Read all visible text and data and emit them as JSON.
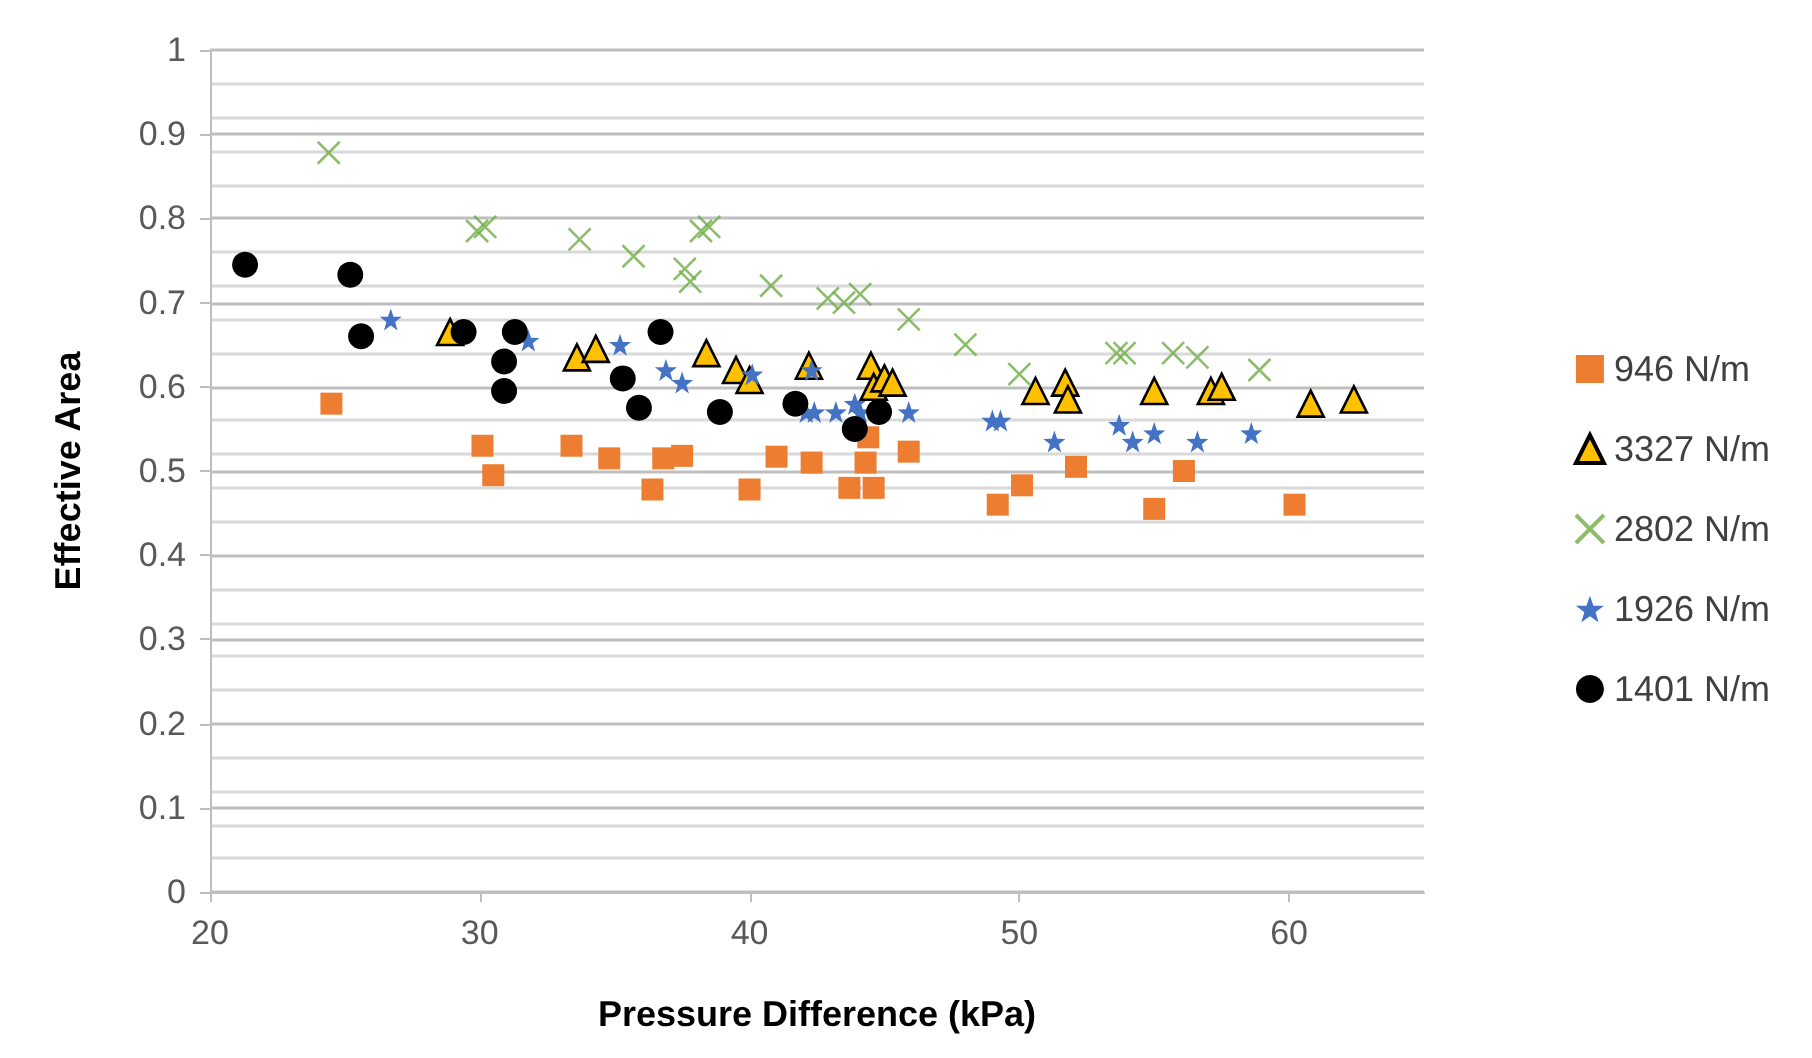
{
  "chart_data": {
    "type": "scatter",
    "xlabel": "Pressure Difference (kPa)",
    "ylabel": "Effective Area",
    "xlim": [
      20,
      65
    ],
    "xticks": [
      20,
      30,
      40,
      50,
      60
    ],
    "ylim": [
      0,
      1
    ],
    "yticks": [
      0,
      0.1,
      0.2,
      0.3,
      0.4,
      0.5,
      0.6,
      0.7,
      0.8,
      0.9,
      1
    ],
    "grid": "y",
    "legend": "right",
    "series": [
      {
        "name": "946 N/m",
        "color": "#ed7d31",
        "marker": "square",
        "x": [
          24.5,
          30.1,
          30.5,
          33.4,
          34.8,
          36.4,
          36.8,
          37.5,
          40,
          41,
          42.3,
          43.7,
          44.3,
          44.4,
          44.6,
          45.9,
          49.2,
          50.1,
          52.1,
          55,
          56.1,
          60.2
        ],
        "values": [
          0.58,
          0.53,
          0.495,
          0.53,
          0.515,
          0.478,
          0.515,
          0.518,
          0.478,
          0.517,
          0.51,
          0.48,
          0.51,
          0.54,
          0.48,
          0.523,
          0.46,
          0.483,
          0.505,
          0.455,
          0.5,
          0.46
        ]
      },
      {
        "name": "3327 N/m",
        "color": "#ffc000",
        "marker": "triangle",
        "x": [
          28.9,
          33.6,
          34.3,
          38.4,
          39.5,
          40,
          42.2,
          44.5,
          44.6,
          45,
          45.3,
          50.6,
          51.7,
          51.8,
          55,
          57.1,
          57.5,
          60.8,
          62.4
        ],
        "values": [
          0.665,
          0.635,
          0.645,
          0.64,
          0.62,
          0.608,
          0.625,
          0.625,
          0.6,
          0.61,
          0.605,
          0.595,
          0.605,
          0.585,
          0.595,
          0.595,
          0.6,
          0.58,
          0.585
        ]
      },
      {
        "name": "2802 N/m",
        "color": "#70ad47",
        "marker": "cross",
        "x": [
          24.4,
          29.9,
          30.2,
          33.7,
          35.7,
          37.6,
          37.8,
          38.2,
          38.5,
          40.8,
          42.9,
          43.5,
          44.1,
          45.9,
          48,
          50,
          53.6,
          53.9,
          55.7,
          56.6,
          58.9
        ],
        "values": [
          0.878,
          0.785,
          0.79,
          0.775,
          0.755,
          0.74,
          0.725,
          0.785,
          0.79,
          0.72,
          0.705,
          0.7,
          0.71,
          0.68,
          0.65,
          0.615,
          0.64,
          0.64,
          0.64,
          0.635,
          0.62
        ]
      },
      {
        "name": "1926 N/m",
        "color": "#4472c4",
        "marker": "star",
        "x": [
          26.7,
          31.8,
          35.2,
          36.9,
          37.5,
          40.1,
          42.1,
          42.3,
          42.4,
          43.2,
          43.9,
          44.1,
          45.9,
          49,
          49.3,
          51.3,
          53.7,
          54.2,
          55,
          56.6,
          58.6
        ],
        "values": [
          0.68,
          0.655,
          0.65,
          0.62,
          0.605,
          0.615,
          0.57,
          0.62,
          0.57,
          0.57,
          0.58,
          0.57,
          0.57,
          0.56,
          0.56,
          0.535,
          0.555,
          0.535,
          0.545,
          0.535,
          0.545
        ]
      },
      {
        "name": "1401 N/m",
        "color": "#000000",
        "marker": "circle",
        "x": [
          21.3,
          25.2,
          25.6,
          29.4,
          30.9,
          30.9,
          31.3,
          35.3,
          35.9,
          36.7,
          38.9,
          41.7,
          43.9,
          44.8
        ],
        "values": [
          0.745,
          0.733,
          0.66,
          0.665,
          0.63,
          0.595,
          0.665,
          0.61,
          0.575,
          0.665,
          0.57,
          0.58,
          0.55,
          0.57
        ]
      }
    ]
  }
}
